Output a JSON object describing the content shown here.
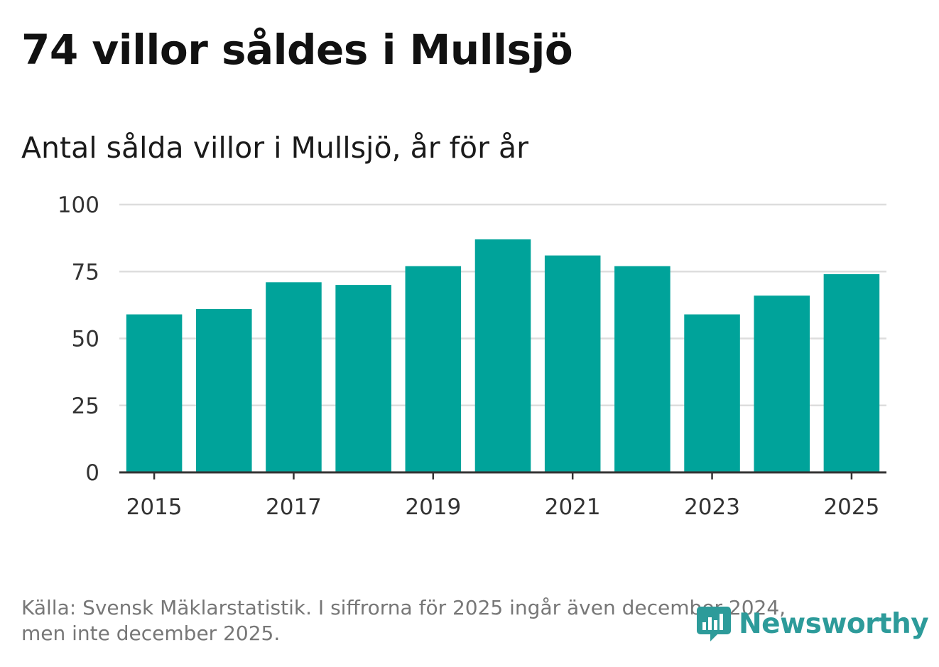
{
  "headline": "74 villor såldes i Mullsjö",
  "chart_data": {
    "type": "bar",
    "title": "Antal sålda villor i Mullsjö, år för år",
    "xlabel": "",
    "ylabel": "",
    "categories": [
      "2015",
      "2016",
      "2017",
      "2018",
      "2019",
      "2020",
      "2021",
      "2022",
      "2023",
      "2024",
      "2025"
    ],
    "values": [
      59,
      61,
      71,
      70,
      77,
      87,
      81,
      77,
      59,
      66,
      74
    ],
    "ylim": [
      0,
      100
    ],
    "yticks": [
      "0",
      "25",
      "50",
      "75",
      "100"
    ],
    "xticks": [
      "2015",
      "2017",
      "2019",
      "2021",
      "2023",
      "2025"
    ],
    "grid": true,
    "bar_color": "#00a39a"
  },
  "footer": {
    "source_line1": "Källa: Svensk Mäklarstatistik. I siffrorna för 2025 ingår även december 2024,",
    "source_line2": "men inte december 2025."
  },
  "logo": {
    "name": "Newsworthy",
    "color": "#2d9b9a"
  }
}
